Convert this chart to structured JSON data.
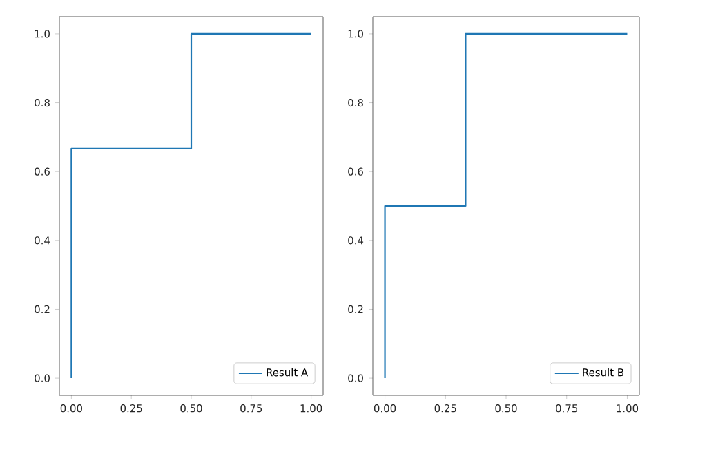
{
  "chart_data": [
    {
      "type": "line",
      "x": [
        0,
        0,
        0.5,
        0.5,
        1
      ],
      "series": [
        {
          "name": "Result A",
          "color": "#1f77b4",
          "values": [
            0,
            0.667,
            0.667,
            1,
            1
          ]
        }
      ],
      "xlim": [
        -0.05,
        1.05
      ],
      "ylim": [
        -0.05,
        1.05
      ],
      "xticks": [
        {
          "value": 0,
          "label": "0.00"
        },
        {
          "value": 0.25,
          "label": "0.25"
        },
        {
          "value": 0.5,
          "label": "0.50"
        },
        {
          "value": 0.75,
          "label": "0.75"
        },
        {
          "value": 1,
          "label": "1.00"
        }
      ],
      "yticks": [
        {
          "value": 0,
          "label": "0.0"
        },
        {
          "value": 0.2,
          "label": "0.2"
        },
        {
          "value": 0.4,
          "label": "0.4"
        },
        {
          "value": 0.6,
          "label": "0.6"
        },
        {
          "value": 0.8,
          "label": "0.8"
        },
        {
          "value": 1,
          "label": "1.0"
        }
      ],
      "legend": "bottom right",
      "grid": false,
      "marker": "none",
      "line_style": "solid"
    },
    {
      "type": "line",
      "x": [
        0,
        0,
        0.333,
        0.333,
        1
      ],
      "series": [
        {
          "name": "Result B",
          "color": "#1f77b4",
          "values": [
            0,
            0.5,
            0.5,
            1,
            1
          ]
        }
      ],
      "xlim": [
        -0.05,
        1.05
      ],
      "ylim": [
        -0.05,
        1.05
      ],
      "xticks": [
        {
          "value": 0,
          "label": "0.00"
        },
        {
          "value": 0.25,
          "label": "0.25"
        },
        {
          "value": 0.5,
          "label": "0.50"
        },
        {
          "value": 0.75,
          "label": "0.75"
        },
        {
          "value": 1,
          "label": "1.00"
        }
      ],
      "yticks": [
        {
          "value": 0,
          "label": "0.0"
        },
        {
          "value": 0.2,
          "label": "0.2"
        },
        {
          "value": 0.4,
          "label": "0.4"
        },
        {
          "value": 0.6,
          "label": "0.6"
        },
        {
          "value": 0.8,
          "label": "0.8"
        },
        {
          "value": 1,
          "label": "1.0"
        }
      ],
      "legend": "bottom right",
      "grid": false,
      "marker": "none",
      "line_style": "solid"
    }
  ]
}
